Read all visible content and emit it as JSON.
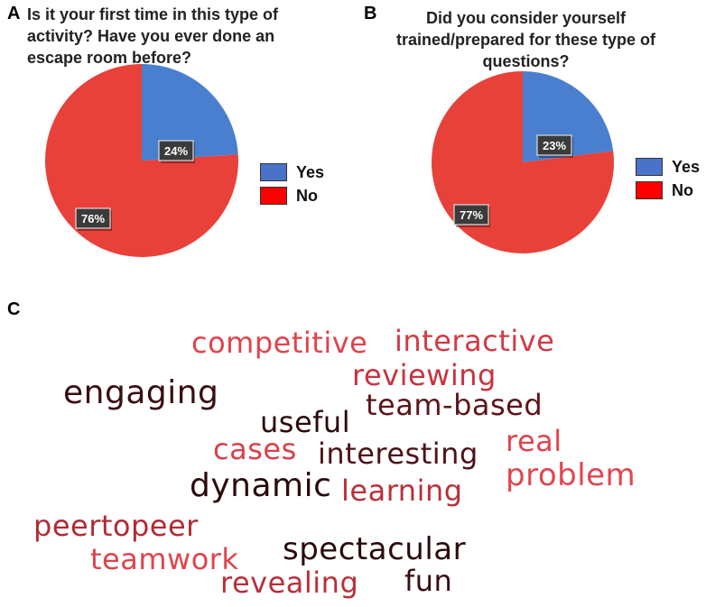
{
  "chart_data": [
    {
      "panel": "A",
      "type": "pie",
      "title": "Is it your first time in this type of activity? Have you ever done an escape room before?",
      "categories": [
        "Yes",
        "No"
      ],
      "values": [
        24,
        76
      ],
      "labels": [
        "24%",
        "76%"
      ],
      "colors": [
        "#4A7FD0",
        "#E8413A"
      ],
      "legend": "right"
    },
    {
      "panel": "B",
      "type": "pie",
      "title": "Did you consider yourself trained/prepared for these type of questions?",
      "categories": [
        "Yes",
        "No"
      ],
      "values": [
        23,
        77
      ],
      "labels": [
        "23%",
        "77%"
      ],
      "colors": [
        "#4A7FD0",
        "#E8413A"
      ],
      "legend": "right"
    }
  ],
  "panels": {
    "a": "A",
    "b": "B",
    "c": "C"
  },
  "legend_swatch_colors": {
    "yes": "#4A72C8",
    "no": "#FF0000"
  },
  "word_cloud": {
    "words": [
      {
        "text": "competitive",
        "color": "#E0434B"
      },
      {
        "text": "interactive",
        "color": "#D23B45"
      },
      {
        "text": "reviewing",
        "color": "#C8323F"
      },
      {
        "text": "engaging",
        "color": "#3A0D10"
      },
      {
        "text": "team-based",
        "color": "#5C1418"
      },
      {
        "text": "useful",
        "color": "#2B0A0C"
      },
      {
        "text": "cases",
        "color": "#DC3E47"
      },
      {
        "text": "interesting",
        "color": "#4E1216"
      },
      {
        "text": "real",
        "color": "#E0434B"
      },
      {
        "text": "dynamic",
        "color": "#2A0A0C"
      },
      {
        "text": "learning",
        "color": "#B8303A"
      },
      {
        "text": "problem",
        "color": "#E3454E"
      },
      {
        "text": "peertopeer",
        "color": "#B02B35"
      },
      {
        "text": "teamwork",
        "color": "#E0434B"
      },
      {
        "text": "spectacular",
        "color": "#2A0A0C"
      },
      {
        "text": "revealing",
        "color": "#B8303A"
      },
      {
        "text": "fun",
        "color": "#3A0D10"
      }
    ]
  }
}
